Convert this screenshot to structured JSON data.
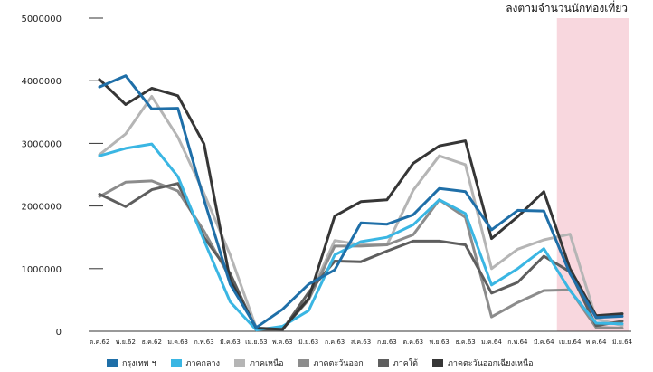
{
  "chart_data": {
    "type": "line",
    "title": "",
    "subtitle": "ลงตามจำนวนนักท่องเที่ยว",
    "xlabel": "",
    "ylabel": "",
    "ylim": [
      0,
      5000000
    ],
    "yticks": [
      0,
      1000000,
      2000000,
      3000000,
      4000000,
      5000000
    ],
    "ytick_labels": [
      "0",
      "1000000",
      "2000000",
      "3000000",
      "4000000",
      "5000000"
    ],
    "categories": [
      "ต.ค.62",
      "พ.ย.62",
      "ธ.ค.62",
      "ม.ค.63",
      "ก.พ.63",
      "มี.ค.63",
      "เม.ย.63",
      "พ.ค.63",
      "มิ.ย.63",
      "ก.ค.63",
      "ส.ค.63",
      "ก.ย.63",
      "ต.ค.63",
      "พ.ย.63",
      "ธ.ค.63",
      "ม.ค.64",
      "ก.พ.64",
      "มี.ค.64",
      "เม.ย.64",
      "พ.ค.64",
      "มิ.ย.64"
    ],
    "highlight": {
      "from_index": 18,
      "to_index": 20,
      "color": "#f8d7de"
    },
    "grid": false,
    "legend_position": "bottom",
    "series": [
      {
        "name": "กรุงเทพ ฯ",
        "color": "#1f6fa8",
        "values": [
          3900000,
          4080000,
          3550000,
          3560000,
          2100000,
          750000,
          60000,
          350000,
          750000,
          980000,
          1730000,
          1710000,
          1860000,
          2280000,
          2230000,
          1620000,
          1930000,
          1920000,
          920000,
          220000,
          240000
        ]
      },
      {
        "name": "ภาคกลาง",
        "color": "#3ab6e3",
        "values": [
          2800000,
          2920000,
          2990000,
          2470000,
          1450000,
          470000,
          20000,
          80000,
          330000,
          1220000,
          1430000,
          1500000,
          1700000,
          2100000,
          1880000,
          740000,
          1000000,
          1320000,
          650000,
          130000,
          120000
        ]
      },
      {
        "name": "ภาคเหนือ",
        "color": "#b5b5b5",
        "values": [
          2820000,
          3150000,
          3750000,
          3100000,
          2200000,
          1220000,
          50000,
          40000,
          520000,
          1450000,
          1380000,
          1380000,
          2250000,
          2800000,
          2660000,
          1000000,
          1310000,
          1460000,
          1550000,
          200000,
          90000
        ]
      },
      {
        "name": "ภาคตะวันออก",
        "color": "#8c8c8c",
        "values": [
          2150000,
          2380000,
          2400000,
          2240000,
          1600000,
          850000,
          30000,
          30000,
          500000,
          1360000,
          1360000,
          1380000,
          1540000,
          2100000,
          1820000,
          230000,
          460000,
          650000,
          660000,
          60000,
          50000
        ]
      },
      {
        "name": "ภาคใต้",
        "color": "#5e5e5e",
        "values": [
          2190000,
          1990000,
          2260000,
          2360000,
          1500000,
          920000,
          20000,
          20000,
          620000,
          1120000,
          1110000,
          1280000,
          1440000,
          1440000,
          1380000,
          610000,
          780000,
          1200000,
          950000,
          90000,
          160000
        ]
      },
      {
        "name": "ภาคตะวันออกเฉียงเหนือ",
        "color": "#363636",
        "values": [
          4020000,
          3620000,
          3880000,
          3760000,
          2990000,
          810000,
          50000,
          30000,
          520000,
          1840000,
          2070000,
          2100000,
          2680000,
          2960000,
          3040000,
          1480000,
          1830000,
          2230000,
          1000000,
          250000,
          280000
        ]
      }
    ]
  }
}
